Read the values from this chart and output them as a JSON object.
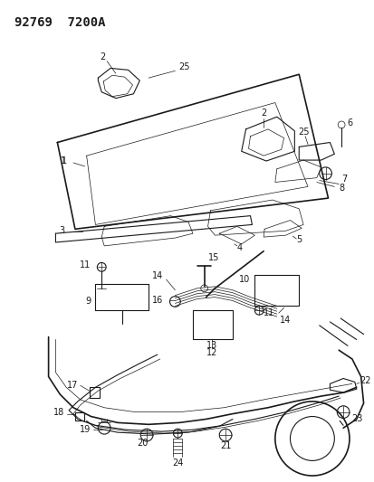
{
  "title_code": "92769  7200A",
  "bg_color": "#ffffff",
  "line_color": "#1a1a1a",
  "title_fontsize": 10,
  "label_fontsize": 7,
  "fig_width": 4.14,
  "fig_height": 5.33,
  "dpi": 100
}
